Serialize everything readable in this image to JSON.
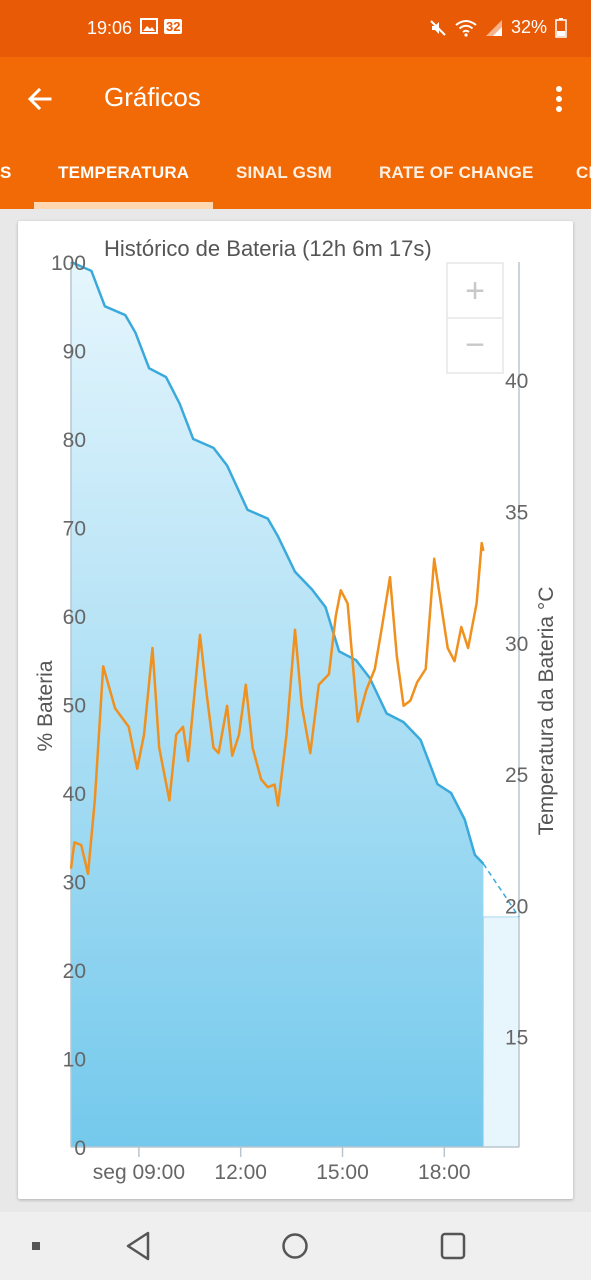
{
  "status_bar": {
    "time": "19:06",
    "notification_icons": [
      "image-icon",
      "calendar-badge-icon"
    ],
    "calendar_badge": "32",
    "battery_percent": "32%",
    "right_icons": [
      "mute-icon",
      "wifi-icon",
      "signal-icon",
      "battery-icon"
    ]
  },
  "app_bar": {
    "title": "Gráficos",
    "back_icon": "arrow-back-icon",
    "menu_icon": "more-vert-icon"
  },
  "tabs": [
    {
      "label": "S",
      "selected": false
    },
    {
      "label": "TEMPERATURA",
      "selected": true
    },
    {
      "label": "SINAL GSM",
      "selected": false
    },
    {
      "label": "RATE OF CHANGE",
      "selected": false
    },
    {
      "label": "CI",
      "selected": false
    }
  ],
  "zoom": {
    "plus": "+",
    "minus": "−"
  },
  "chart_data": {
    "type": "line",
    "title": "Histórico de Bateria (12h 6m 17s)",
    "y_left": {
      "label": "% Bateria",
      "range": [
        0,
        100
      ],
      "ticks": [
        "0",
        "10",
        "20",
        "30",
        "40",
        "50",
        "60",
        "70",
        "80",
        "90",
        "100"
      ]
    },
    "y_right": {
      "label": "Temperatura da Bateria °C",
      "range": [
        10.8,
        44.5
      ],
      "ticks": [
        "15",
        "20",
        "25",
        "30",
        "35",
        "40"
      ]
    },
    "x_axis": {
      "range_hours": [
        7.0,
        20.2
      ],
      "ticks": [
        {
          "label": "seg 09:00",
          "hour": 9
        },
        {
          "label": "12:00",
          "hour": 12
        },
        {
          "label": "15:00",
          "hour": 15
        },
        {
          "label": "18:00",
          "hour": 18
        }
      ]
    },
    "series": [
      {
        "name": "% Bateria",
        "color": "#3aa9dc",
        "fill": true,
        "points": [
          [
            7.0,
            100
          ],
          [
            7.6,
            99
          ],
          [
            8.0,
            95
          ],
          [
            8.6,
            94
          ],
          [
            8.9,
            92
          ],
          [
            9.3,
            88
          ],
          [
            9.8,
            87
          ],
          [
            10.2,
            84
          ],
          [
            10.6,
            80
          ],
          [
            11.2,
            79
          ],
          [
            11.6,
            77
          ],
          [
            12.2,
            72
          ],
          [
            12.8,
            71
          ],
          [
            13.1,
            69
          ],
          [
            13.6,
            65
          ],
          [
            14.1,
            63
          ],
          [
            14.5,
            61
          ],
          [
            14.9,
            56
          ],
          [
            15.4,
            55
          ],
          [
            15.8,
            53
          ],
          [
            16.3,
            49
          ],
          [
            16.8,
            48
          ],
          [
            17.3,
            46
          ],
          [
            17.8,
            41
          ],
          [
            18.2,
            40
          ],
          [
            18.6,
            37
          ],
          [
            18.9,
            33
          ],
          [
            19.15,
            32
          ]
        ],
        "projection": [
          [
            19.15,
            32
          ],
          [
            20.2,
            26
          ]
        ]
      },
      {
        "name": "Temperatura da Bateria °C",
        "color": "#f0901e",
        "points": [
          [
            7.0,
            21.4
          ],
          [
            7.1,
            22.4
          ],
          [
            7.3,
            22.3
          ],
          [
            7.5,
            21.2
          ],
          [
            7.7,
            24.0
          ],
          [
            7.95,
            29.1
          ],
          [
            8.3,
            27.5
          ],
          [
            8.7,
            26.8
          ],
          [
            8.95,
            25.2
          ],
          [
            9.15,
            26.5
          ],
          [
            9.4,
            29.8
          ],
          [
            9.6,
            26.0
          ],
          [
            9.9,
            24.0
          ],
          [
            10.1,
            26.5
          ],
          [
            10.3,
            26.8
          ],
          [
            10.45,
            25.5
          ],
          [
            10.8,
            30.3
          ],
          [
            11.0,
            28.0
          ],
          [
            11.2,
            26.0
          ],
          [
            11.35,
            25.8
          ],
          [
            11.6,
            27.6
          ],
          [
            11.75,
            25.7
          ],
          [
            11.95,
            26.5
          ],
          [
            12.15,
            28.4
          ],
          [
            12.35,
            26.0
          ],
          [
            12.6,
            24.8
          ],
          [
            12.8,
            24.5
          ],
          [
            13.0,
            24.6
          ],
          [
            13.1,
            23.8
          ],
          [
            13.35,
            26.5
          ],
          [
            13.6,
            30.5
          ],
          [
            13.8,
            27.6
          ],
          [
            14.05,
            25.8
          ],
          [
            14.3,
            28.4
          ],
          [
            14.6,
            28.8
          ],
          [
            14.8,
            31.0
          ],
          [
            14.95,
            32.0
          ],
          [
            15.15,
            31.5
          ],
          [
            15.45,
            27.0
          ],
          [
            15.7,
            28.2
          ],
          [
            15.95,
            29.0
          ],
          [
            16.15,
            30.5
          ],
          [
            16.4,
            32.5
          ],
          [
            16.6,
            29.5
          ],
          [
            16.8,
            27.6
          ],
          [
            17.0,
            27.8
          ],
          [
            17.2,
            28.5
          ],
          [
            17.45,
            29.0
          ],
          [
            17.7,
            33.2
          ],
          [
            17.9,
            31.5
          ],
          [
            18.1,
            29.8
          ],
          [
            18.3,
            29.3
          ],
          [
            18.5,
            30.6
          ],
          [
            18.7,
            29.8
          ],
          [
            18.95,
            31.5
          ],
          [
            19.1,
            33.8
          ],
          [
            19.15,
            33.5
          ]
        ]
      }
    ]
  }
}
